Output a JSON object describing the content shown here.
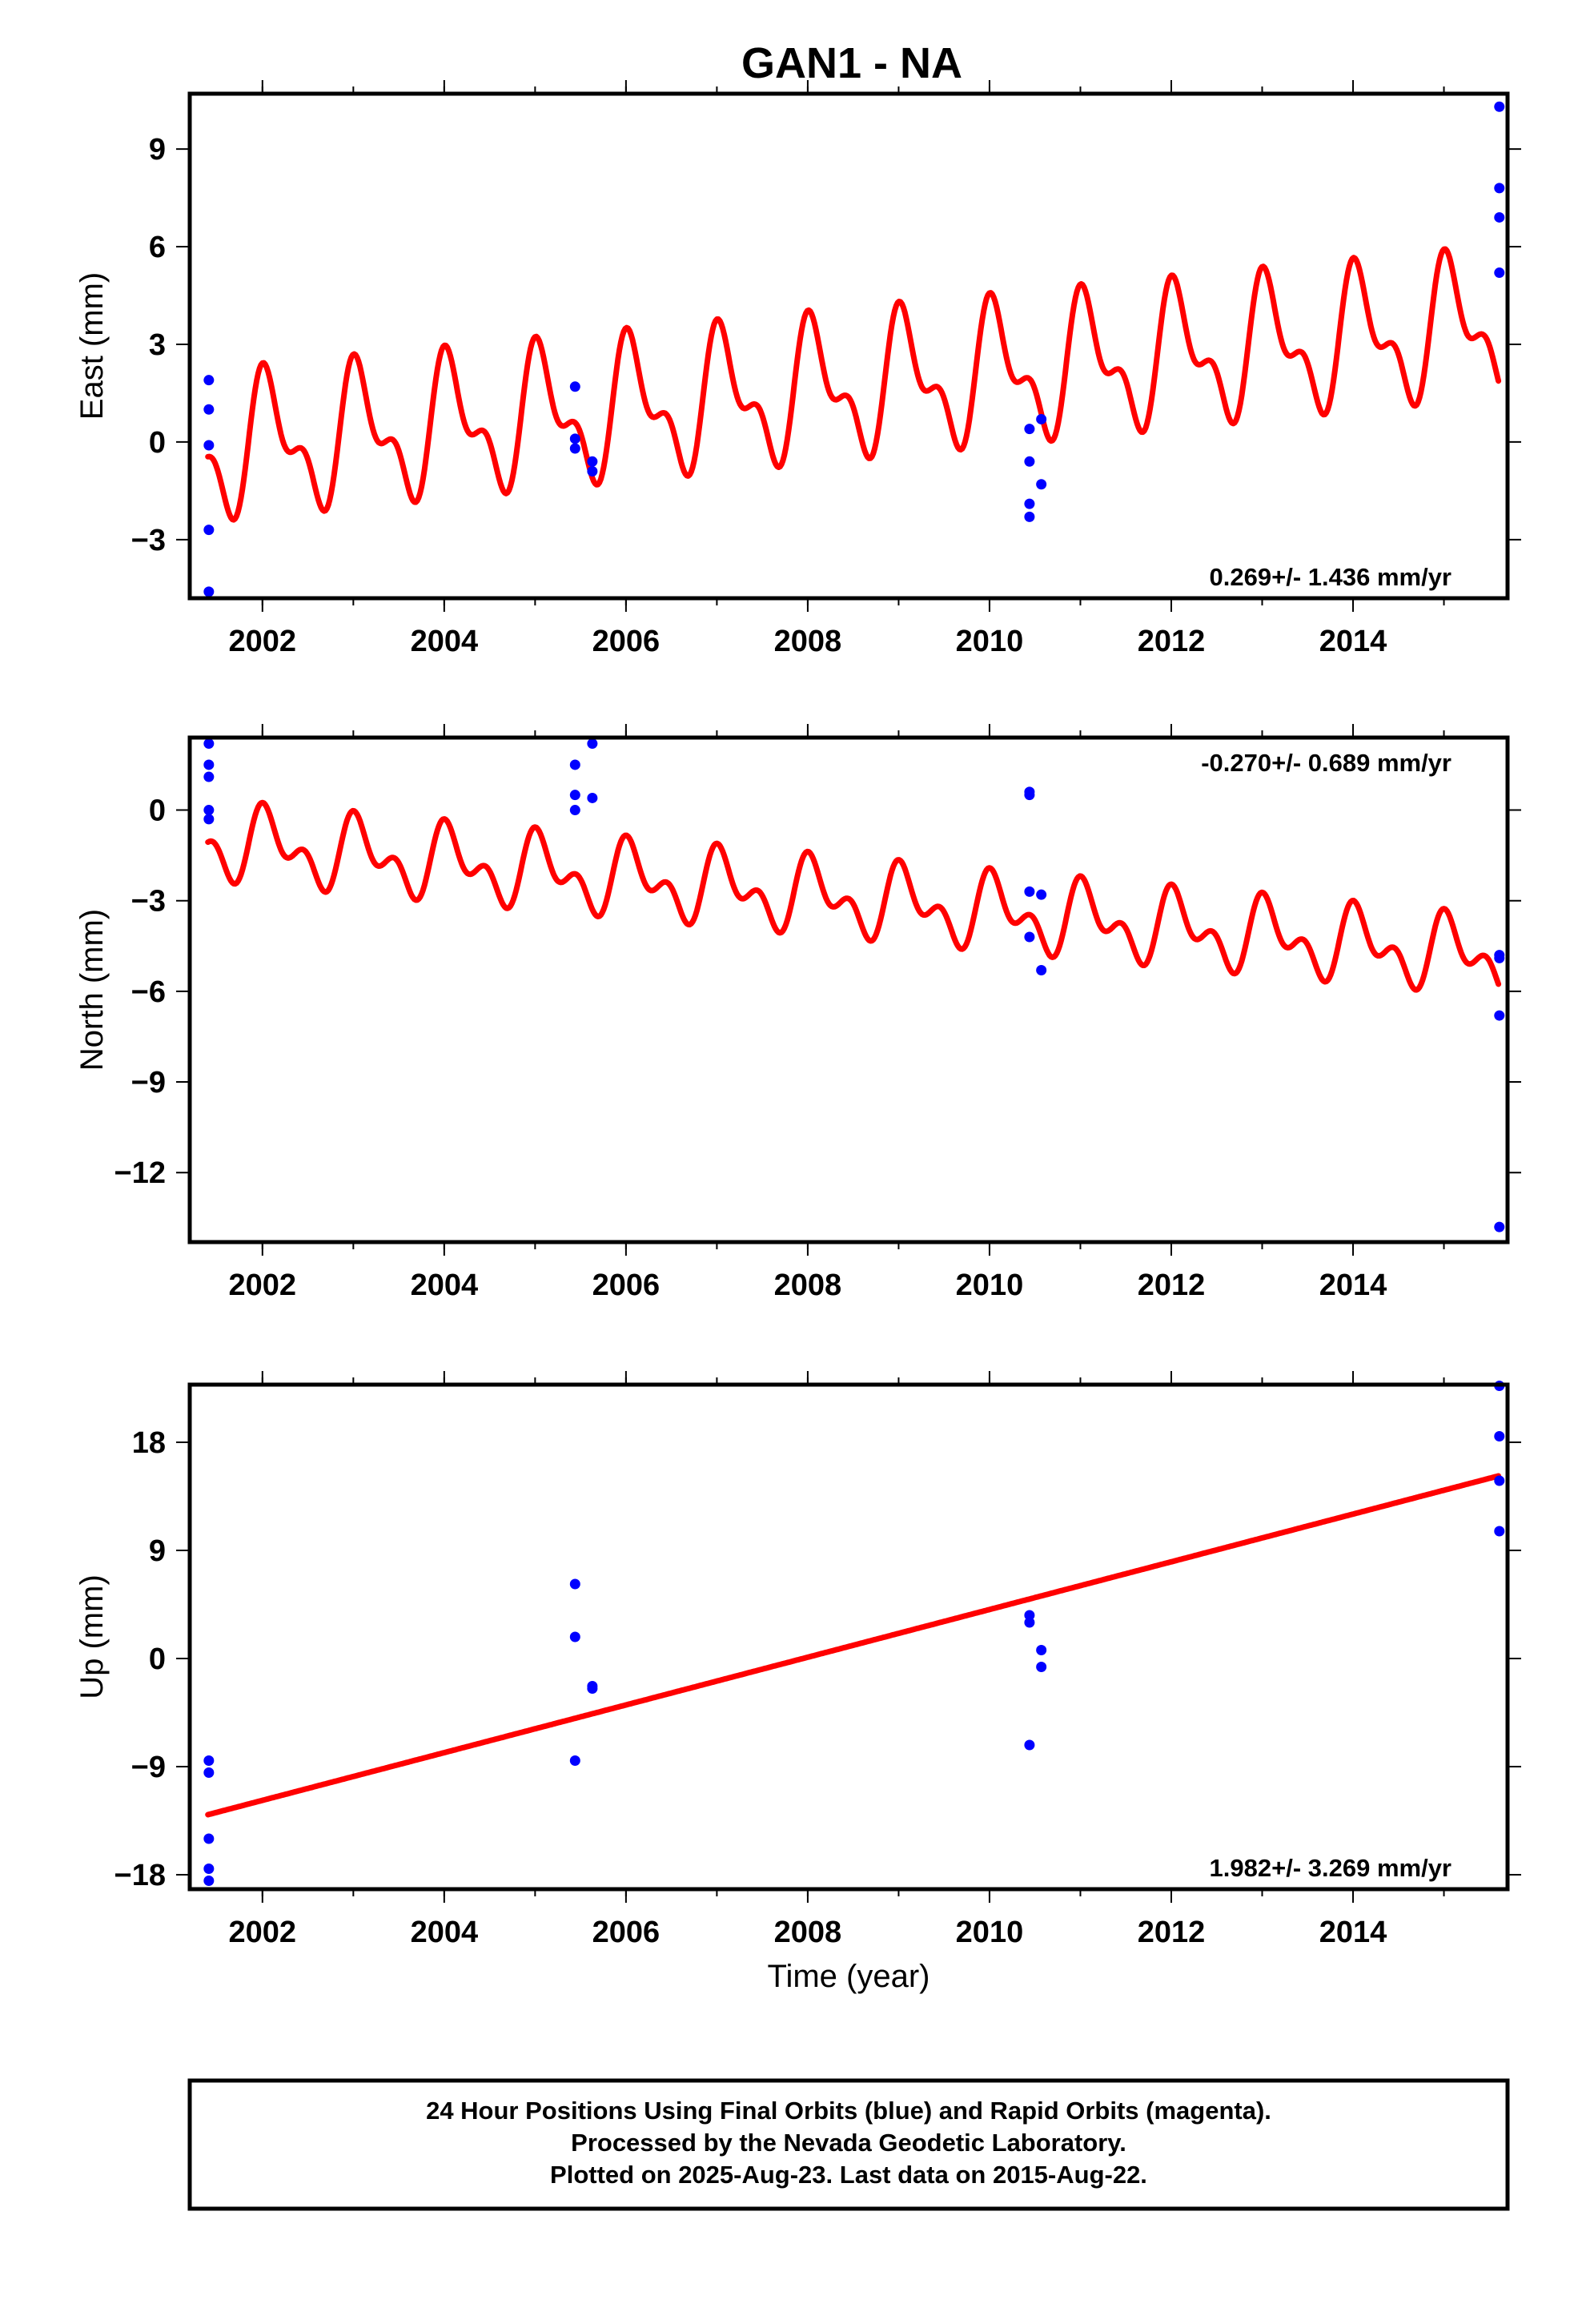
{
  "title": "GAN1 - NA",
  "colors": {
    "final_orbits": "#0000ff",
    "model": "#ff0000",
    "frame": "#000000"
  },
  "footer": {
    "line1": "24 Hour Positions Using Final Orbits (blue) and Rapid Orbits (magenta).",
    "line2": "Processed by the Nevada Geodetic Laboratory.",
    "line3": "Plotted on 2025-Aug-23. Last data on 2015-Aug-22."
  },
  "chart_data": [
    {
      "type": "scatter",
      "ylabel": "East (mm)",
      "rate_label": "0.269+/- 1.436 mm/yr",
      "xlim": [
        2001.2,
        2015.7
      ],
      "ylim": [
        -4.8,
        10.7
      ],
      "xticks": [
        2002,
        2004,
        2006,
        2008,
        2010,
        2012,
        2014
      ],
      "xtick_labels": [
        "2002",
        "2004",
        "2006",
        "2008",
        "2010",
        "2012",
        "2014"
      ],
      "yticks": [
        -3,
        0,
        3,
        6,
        9
      ],
      "ytick_labels": [
        "−3",
        "0",
        "3",
        "6",
        "9"
      ],
      "series": [
        {
          "role": "observations",
          "points": [
            [
              2001.41,
              1.9
            ],
            [
              2001.41,
              1.0
            ],
            [
              2001.41,
              -0.1
            ],
            [
              2001.41,
              -2.7
            ],
            [
              2001.41,
              -4.6
            ],
            [
              2005.44,
              1.7
            ],
            [
              2005.44,
              0.1
            ],
            [
              2005.44,
              -0.2
            ],
            [
              2005.63,
              -0.6
            ],
            [
              2005.63,
              -0.9
            ],
            [
              2010.44,
              0.4
            ],
            [
              2010.44,
              -0.6
            ],
            [
              2010.44,
              -1.9
            ],
            [
              2010.44,
              -2.3
            ],
            [
              2010.57,
              0.7
            ],
            [
              2010.57,
              -1.3
            ],
            [
              2015.61,
              10.3
            ],
            [
              2015.61,
              7.8
            ],
            [
              2015.61,
              6.9
            ],
            [
              2015.61,
              5.2
            ]
          ]
        },
        {
          "role": "model",
          "x_range": [
            2001.4,
            2015.6
          ],
          "intercept_at_2001": -0.35,
          "trend_per_yr": 0.269,
          "annual_amp": 1.75,
          "semiannual_amp": 1.0
        }
      ]
    },
    {
      "type": "scatter",
      "ylabel": "North (mm)",
      "rate_label": "-0.270+/- 0.689 mm/yr",
      "xlim": [
        2001.2,
        2015.7
      ],
      "ylim": [
        -14.3,
        2.4
      ],
      "xticks": [
        2002,
        2004,
        2006,
        2008,
        2010,
        2012,
        2014
      ],
      "xtick_labels": [
        "2002",
        "2004",
        "2006",
        "2008",
        "2010",
        "2012",
        "2014"
      ],
      "yticks": [
        -12,
        -9,
        -6,
        -3,
        0
      ],
      "ytick_labels": [
        "−12",
        "−9",
        "−6",
        "−3",
        "0"
      ],
      "series": [
        {
          "role": "observations",
          "points": [
            [
              2001.41,
              2.2
            ],
            [
              2001.41,
              1.5
            ],
            [
              2001.41,
              1.1
            ],
            [
              2001.41,
              0.0
            ],
            [
              2001.41,
              -0.3
            ],
            [
              2005.44,
              1.5
            ],
            [
              2005.44,
              0.5
            ],
            [
              2005.44,
              0.0
            ],
            [
              2005.63,
              2.2
            ],
            [
              2005.63,
              0.4
            ],
            [
              2010.44,
              0.6
            ],
            [
              2010.44,
              0.5
            ],
            [
              2010.44,
              -2.7
            ],
            [
              2010.44,
              -4.2
            ],
            [
              2010.57,
              -2.8
            ],
            [
              2010.57,
              -5.3
            ],
            [
              2015.61,
              -4.8
            ],
            [
              2015.61,
              -4.9
            ],
            [
              2015.61,
              -6.8
            ],
            [
              2015.61,
              -13.8
            ]
          ]
        },
        {
          "role": "model",
          "x_range": [
            2001.4,
            2015.6
          ],
          "intercept_at_2001": -0.95,
          "trend_per_yr": -0.27,
          "annual_amp": 0.9,
          "semiannual_amp": 0.7
        }
      ]
    },
    {
      "type": "scatter",
      "xlabel": "Time (year)",
      "ylabel": "Up (mm)",
      "rate_label": "1.982+/- 3.269 mm/yr",
      "xlim": [
        2001.2,
        2015.7
      ],
      "ylim": [
        -19.2,
        22.8
      ],
      "xticks": [
        2002,
        2004,
        2006,
        2008,
        2010,
        2012,
        2014
      ],
      "xtick_labels": [
        "2002",
        "2004",
        "2006",
        "2008",
        "2010",
        "2012",
        "2014"
      ],
      "yticks": [
        -18,
        -9,
        0,
        9,
        18
      ],
      "ytick_labels": [
        "−18",
        "−9",
        "0",
        "9",
        "18"
      ],
      "series": [
        {
          "role": "observations",
          "points": [
            [
              2001.41,
              -8.5
            ],
            [
              2001.41,
              -9.5
            ],
            [
              2001.41,
              -15.0
            ],
            [
              2001.41,
              -17.5
            ],
            [
              2001.41,
              -18.5
            ],
            [
              2005.44,
              6.2
            ],
            [
              2005.44,
              1.8
            ],
            [
              2005.44,
              -8.5
            ],
            [
              2005.63,
              -2.3
            ],
            [
              2005.63,
              -2.5
            ],
            [
              2010.44,
              3.6
            ],
            [
              2010.44,
              3.0
            ],
            [
              2010.44,
              -7.2
            ],
            [
              2010.57,
              0.7
            ],
            [
              2010.57,
              -0.7
            ],
            [
              2015.61,
              22.7
            ],
            [
              2015.61,
              18.5
            ],
            [
              2015.61,
              14.8
            ],
            [
              2015.61,
              10.6
            ]
          ]
        },
        {
          "role": "model",
          "x_range": [
            2001.4,
            2015.6
          ],
          "y_start": -13.0,
          "y_end": 15.2
        }
      ]
    }
  ]
}
